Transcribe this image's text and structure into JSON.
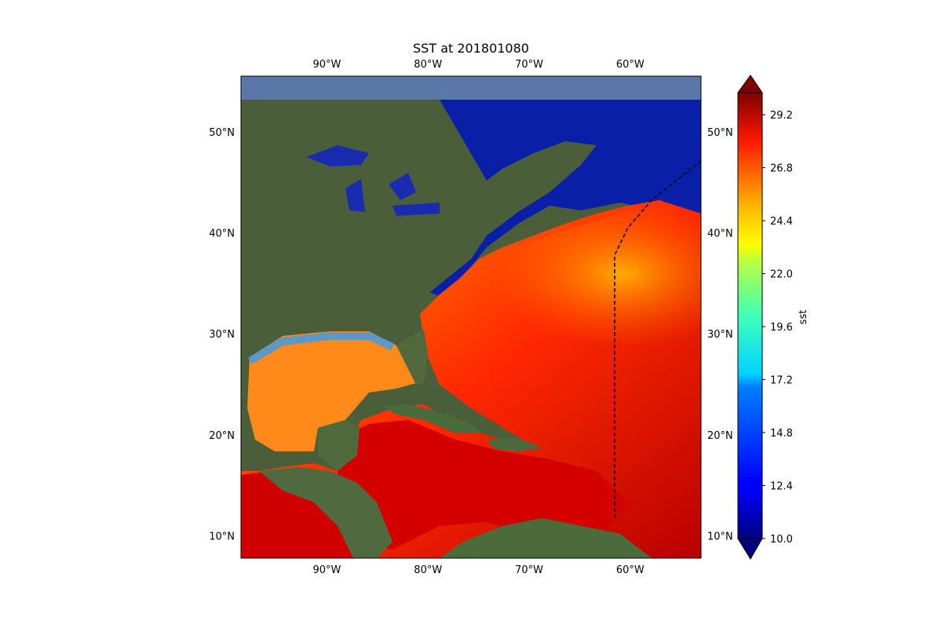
{
  "chart_data": {
    "type": "heatmap",
    "title": "SST at 201801080",
    "variable": "sst",
    "lon_range": [
      -98.5,
      -53
    ],
    "lat_range": [
      7.8,
      55.5
    ],
    "lon_ticks": [
      "90°W",
      "80°W",
      "70°W",
      "60°W"
    ],
    "lon_tick_values": [
      -90,
      -80,
      -70,
      -60
    ],
    "lat_ticks": [
      "10°N",
      "20°N",
      "30°N",
      "40°N",
      "50°N"
    ],
    "lat_tick_values": [
      10,
      20,
      30,
      40,
      50
    ],
    "colorbar": {
      "label": "sst",
      "vmin": 10.0,
      "vmax": 30.2,
      "extend": "both",
      "colormap": "jet",
      "ticks": [
        "10.0",
        "12.4",
        "14.8",
        "17.2",
        "19.6",
        "22.0",
        "24.4",
        "26.8",
        "29.2"
      ],
      "tick_values": [
        10.0,
        12.4,
        14.8,
        17.2,
        19.6,
        22.0,
        24.4,
        26.8,
        29.2
      ]
    },
    "background": "satellite imagery",
    "dashed_boundary_line": true
  }
}
